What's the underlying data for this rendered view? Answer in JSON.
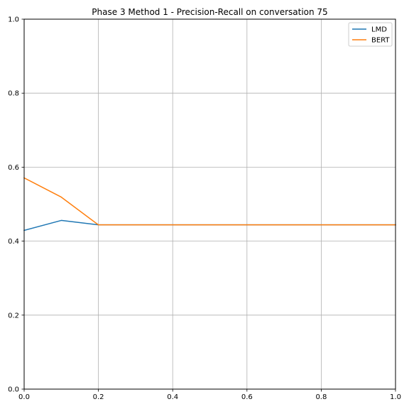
{
  "chart_data": {
    "type": "line",
    "title": "Phase 3 Method 1 - Precision-Recall on conversation 75",
    "xlabel": "",
    "ylabel": "",
    "xlim": [
      0,
      1
    ],
    "ylim": [
      0,
      1
    ],
    "grid": true,
    "legend_position": "top-right",
    "x_ticks": [
      "0.0",
      "0.2",
      "0.4",
      "0.6",
      "0.8",
      "1.0"
    ],
    "y_ticks": [
      "0.0",
      "0.2",
      "0.4",
      "0.6",
      "0.8",
      "1.0"
    ],
    "series": [
      {
        "name": "LMD",
        "color": "#1f77b4",
        "x": [
          0.0,
          0.1,
          0.2,
          0.3,
          0.4,
          0.5,
          0.6,
          0.7,
          0.8,
          0.9,
          1.0
        ],
        "y": [
          0.429,
          0.456,
          0.444,
          0.444,
          0.444,
          0.444,
          0.444,
          0.444,
          0.444,
          0.444,
          0.444
        ]
      },
      {
        "name": "BERT",
        "color": "#ff7f0e",
        "x": [
          0.0,
          0.1,
          0.2,
          0.3,
          0.4,
          0.5,
          0.6,
          0.7,
          0.8,
          0.9,
          1.0
        ],
        "y": [
          0.571,
          0.519,
          0.444,
          0.444,
          0.444,
          0.444,
          0.444,
          0.444,
          0.444,
          0.444,
          0.444
        ]
      }
    ]
  }
}
